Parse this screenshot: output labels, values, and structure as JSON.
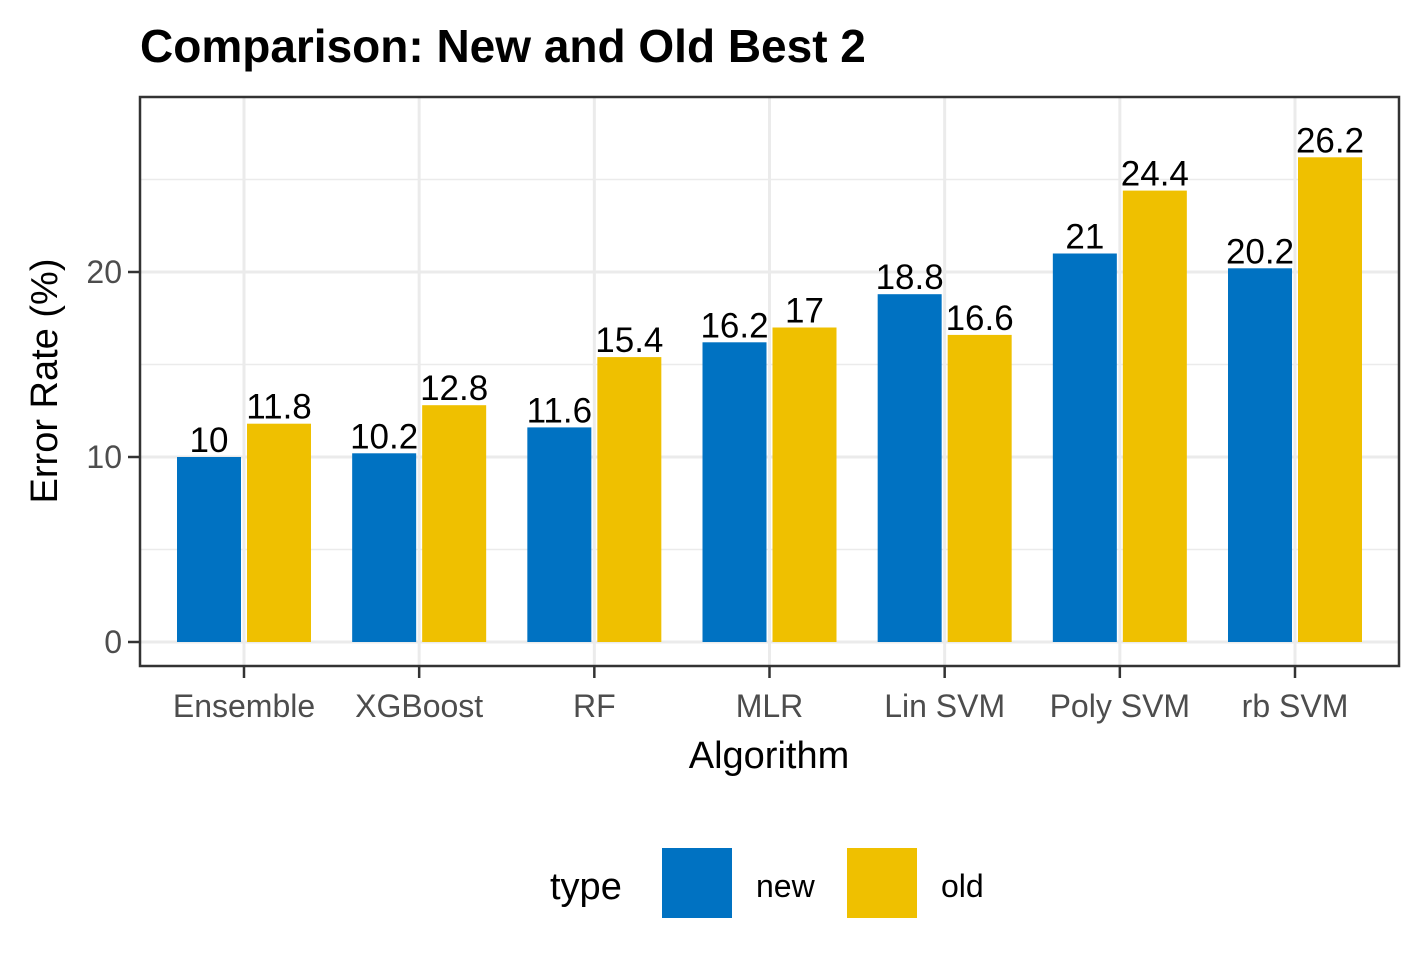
{
  "chart_data": {
    "type": "bar",
    "title": "Comparison: New and Old Best 2",
    "xlabel": "Algorithm",
    "ylabel": "Error Rate (%)",
    "categories": [
      "Ensemble",
      "XGBoost",
      "RF",
      "MLR",
      "Lin SVM",
      "Poly SVM",
      "rb SVM"
    ],
    "series": [
      {
        "name": "new",
        "color": "#0072C2",
        "values": [
          10,
          10.2,
          11.6,
          16.2,
          18.8,
          21,
          20.2
        ]
      },
      {
        "name": "old",
        "color": "#EFC000",
        "values": [
          11.8,
          12.8,
          15.4,
          17,
          16.6,
          24.4,
          26.2
        ]
      }
    ],
    "ylim": [
      0,
      28
    ],
    "yticks": [
      0,
      10,
      20
    ],
    "grid": true,
    "legend": {
      "title": "type",
      "position": "bottom"
    }
  }
}
